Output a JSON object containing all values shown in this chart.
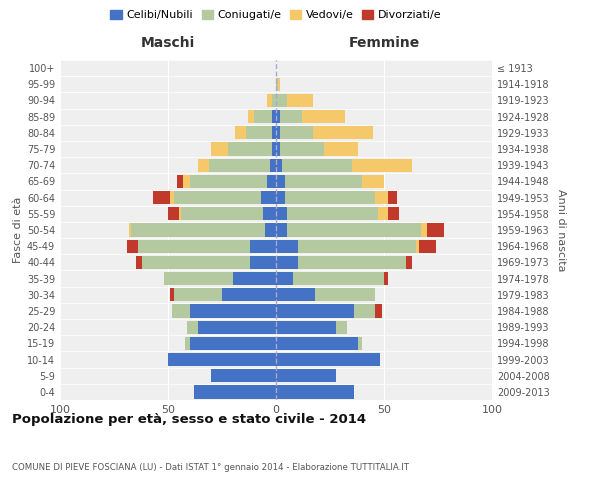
{
  "age_groups": [
    "0-4",
    "5-9",
    "10-14",
    "15-19",
    "20-24",
    "25-29",
    "30-34",
    "35-39",
    "40-44",
    "45-49",
    "50-54",
    "55-59",
    "60-64",
    "65-69",
    "70-74",
    "75-79",
    "80-84",
    "85-89",
    "90-94",
    "95-99",
    "100+"
  ],
  "birth_years": [
    "2009-2013",
    "2004-2008",
    "1999-2003",
    "1994-1998",
    "1989-1993",
    "1984-1988",
    "1979-1983",
    "1974-1978",
    "1969-1973",
    "1964-1968",
    "1959-1963",
    "1954-1958",
    "1949-1953",
    "1944-1948",
    "1939-1943",
    "1934-1938",
    "1929-1933",
    "1924-1928",
    "1919-1923",
    "1914-1918",
    "≤ 1913"
  ],
  "maschi": {
    "celibi": [
      38,
      30,
      50,
      40,
      36,
      40,
      25,
      20,
      12,
      12,
      5,
      6,
      7,
      4,
      3,
      2,
      2,
      2,
      0,
      0,
      0
    ],
    "coniugati": [
      0,
      0,
      0,
      2,
      5,
      8,
      22,
      32,
      50,
      52,
      62,
      38,
      40,
      36,
      28,
      20,
      12,
      8,
      2,
      0,
      0
    ],
    "vedovi": [
      0,
      0,
      0,
      0,
      0,
      0,
      0,
      0,
      0,
      0,
      1,
      1,
      2,
      3,
      5,
      8,
      5,
      3,
      2,
      0,
      0
    ],
    "divorziati": [
      0,
      0,
      0,
      0,
      0,
      0,
      2,
      0,
      3,
      5,
      0,
      5,
      8,
      3,
      0,
      0,
      0,
      0,
      0,
      0,
      0
    ]
  },
  "femmine": {
    "nubili": [
      36,
      28,
      48,
      38,
      28,
      36,
      18,
      8,
      10,
      10,
      5,
      5,
      4,
      4,
      3,
      2,
      2,
      2,
      0,
      0,
      0
    ],
    "coniugate": [
      0,
      0,
      0,
      2,
      5,
      10,
      28,
      42,
      50,
      55,
      62,
      42,
      42,
      36,
      32,
      20,
      15,
      10,
      5,
      1,
      0
    ],
    "vedove": [
      0,
      0,
      0,
      0,
      0,
      0,
      0,
      0,
      0,
      1,
      3,
      5,
      6,
      10,
      28,
      16,
      28,
      20,
      12,
      1,
      0
    ],
    "divorziate": [
      0,
      0,
      0,
      0,
      0,
      3,
      0,
      2,
      3,
      8,
      8,
      5,
      4,
      0,
      0,
      0,
      0,
      0,
      0,
      0,
      0
    ]
  },
  "colors": {
    "celibi_nubili": "#4472c4",
    "coniugati": "#b5c9a0",
    "vedovi": "#f5c96a",
    "divorziati": "#c0392b"
  },
  "title": "Popolazione per età, sesso e stato civile - 2014",
  "subtitle": "COMUNE DI PIEVE FOSCIANA (LU) - Dati ISTAT 1° gennaio 2014 - Elaborazione TUTTITALIA.IT",
  "xlabel_left": "Maschi",
  "xlabel_right": "Femmine",
  "ylabel_left": "Fasce di età",
  "ylabel_right": "Anni di nascita",
  "xlim": 100,
  "bg_color": "#ffffff",
  "plot_bg": "#efefef",
  "legend_labels": [
    "Celibi/Nubili",
    "Coniugati/e",
    "Vedovi/e",
    "Divorziati/e"
  ]
}
